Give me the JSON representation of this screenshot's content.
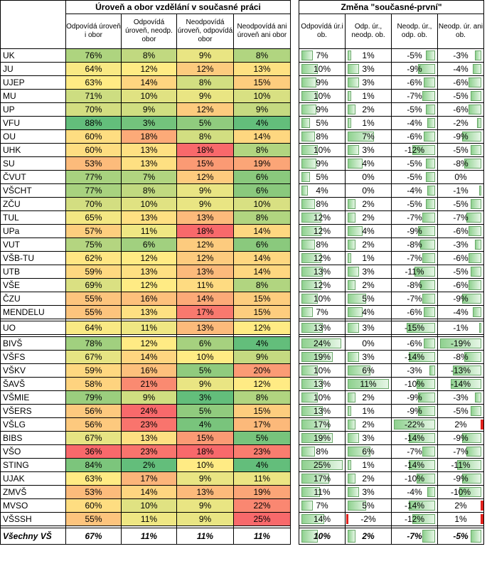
{
  "header": {
    "group1": "Úroveň a obor vzdělání v současné práci",
    "group2": "Změna \"současné-první\"",
    "cols1": [
      "Odpovídá úroveň i obor",
      "Odpovídá úroveň, neodp. obor",
      "Neodpovídá úroveň, odpovídá obor",
      "Neodpovídá ani úroveň ani obor"
    ],
    "cols2": [
      "Odpovídá úr.i ob.",
      "Odp. úr., neodp. ob.",
      "Neodp. úr., odp. ob.",
      "Neodp. úr. ani ob."
    ]
  },
  "colors": {
    "heat_low": "#f8696b",
    "heat_mid": "#ffeb84",
    "heat_high": "#63be7b",
    "bar_green": "#63be7b",
    "bar_red": "#e0201c"
  },
  "rows_a": [
    {
      "name": "UK",
      "v": [
        "76%",
        "8%",
        "9%",
        "8%"
      ],
      "c": [
        "7%",
        "1%",
        "-5%",
        "-3%"
      ]
    },
    {
      "name": "JU",
      "v": [
        "64%",
        "12%",
        "12%",
        "13%"
      ],
      "c": [
        "10%",
        "3%",
        "-9%",
        "-4%"
      ]
    },
    {
      "name": "UJEP",
      "v": [
        "63%",
        "14%",
        "8%",
        "15%"
      ],
      "c": [
        "9%",
        "3%",
        "-6%",
        "-6%"
      ]
    },
    {
      "name": "MU",
      "v": [
        "71%",
        "10%",
        "9%",
        "10%"
      ],
      "c": [
        "10%",
        "1%",
        "-7%",
        "-5%"
      ]
    },
    {
      "name": "UP",
      "v": [
        "70%",
        "9%",
        "12%",
        "9%"
      ],
      "c": [
        "9%",
        "2%",
        "-5%",
        "-6%"
      ]
    },
    {
      "name": "VFU",
      "v": [
        "88%",
        "3%",
        "5%",
        "4%"
      ],
      "c": [
        "5%",
        "1%",
        "-4%",
        "-2%"
      ]
    },
    {
      "name": "OU",
      "v": [
        "60%",
        "18%",
        "8%",
        "14%"
      ],
      "c": [
        "8%",
        "7%",
        "-6%",
        "-9%"
      ]
    },
    {
      "name": "UHK",
      "v": [
        "60%",
        "13%",
        "18%",
        "8%"
      ],
      "c": [
        "10%",
        "3%",
        "-12%",
        "-5%"
      ]
    },
    {
      "name": "SU",
      "v": [
        "53%",
        "13%",
        "15%",
        "19%"
      ],
      "c": [
        "9%",
        "4%",
        "-5%",
        "-8%"
      ]
    },
    {
      "name": "ČVUT",
      "v": [
        "77%",
        "7%",
        "12%",
        "6%"
      ],
      "c": [
        "5%",
        "0%",
        "-5%",
        "0%"
      ]
    },
    {
      "name": "VŠCHT",
      "v": [
        "77%",
        "8%",
        "9%",
        "6%"
      ],
      "c": [
        "4%",
        "0%",
        "-4%",
        "-1%"
      ]
    },
    {
      "name": "ZČU",
      "v": [
        "70%",
        "10%",
        "9%",
        "10%"
      ],
      "c": [
        "8%",
        "2%",
        "-5%",
        "-5%"
      ]
    },
    {
      "name": "TUL",
      "v": [
        "65%",
        "13%",
        "13%",
        "8%"
      ],
      "c": [
        "12%",
        "2%",
        "-7%",
        "-7%"
      ]
    },
    {
      "name": "UPa",
      "v": [
        "57%",
        "11%",
        "18%",
        "14%"
      ],
      "c": [
        "12%",
        "4%",
        "-9%",
        "-6%"
      ]
    },
    {
      "name": "VUT",
      "v": [
        "75%",
        "6%",
        "12%",
        "6%"
      ],
      "c": [
        "8%",
        "2%",
        "-8%",
        "-3%"
      ]
    },
    {
      "name": "VŠB-TU",
      "v": [
        "62%",
        "12%",
        "12%",
        "14%"
      ],
      "c": [
        "12%",
        "1%",
        "-7%",
        "-6%"
      ]
    },
    {
      "name": "UTB",
      "v": [
        "59%",
        "13%",
        "13%",
        "14%"
      ],
      "c": [
        "13%",
        "3%",
        "-11%",
        "-5%"
      ]
    },
    {
      "name": "VŠE",
      "v": [
        "69%",
        "12%",
        "11%",
        "8%"
      ],
      "c": [
        "12%",
        "2%",
        "-8%",
        "-6%"
      ]
    },
    {
      "name": "ČZU",
      "v": [
        "55%",
        "16%",
        "14%",
        "15%"
      ],
      "c": [
        "10%",
        "5%",
        "-7%",
        "-9%"
      ]
    },
    {
      "name": "MENDELU",
      "v": [
        "55%",
        "13%",
        "17%",
        "15%"
      ],
      "c": [
        "7%",
        "4%",
        "-6%",
        "-4%"
      ]
    }
  ],
  "rows_b": [
    {
      "name": "UO",
      "v": [
        "64%",
        "11%",
        "13%",
        "12%"
      ],
      "c": [
        "13%",
        "3%",
        "-15%",
        "-1%"
      ]
    }
  ],
  "rows_c": [
    {
      "name": "BIVŠ",
      "v": [
        "78%",
        "12%",
        "6%",
        "4%"
      ],
      "c": [
        "24%",
        "0%",
        "-6%",
        "-19%"
      ]
    },
    {
      "name": "VŠFS",
      "v": [
        "67%",
        "14%",
        "10%",
        "9%"
      ],
      "c": [
        "19%",
        "3%",
        "-14%",
        "-8%"
      ]
    },
    {
      "name": "VŠKV",
      "v": [
        "59%",
        "16%",
        "5%",
        "20%"
      ],
      "c": [
        "10%",
        "6%",
        "-3%",
        "-13%"
      ]
    },
    {
      "name": "ŠAVŠ",
      "v": [
        "58%",
        "21%",
        "9%",
        "12%"
      ],
      "c": [
        "13%",
        "11%",
        "-10%",
        "-14%"
      ]
    },
    {
      "name": "VŠMIE",
      "v": [
        "79%",
        "9%",
        "3%",
        "8%"
      ],
      "c": [
        "10%",
        "2%",
        "-9%",
        "-3%"
      ]
    },
    {
      "name": "VŠERS",
      "v": [
        "56%",
        "24%",
        "5%",
        "15%"
      ],
      "c": [
        "13%",
        "1%",
        "-9%",
        "-5%"
      ]
    },
    {
      "name": "VŠLG",
      "v": [
        "56%",
        "23%",
        "4%",
        "17%"
      ],
      "c": [
        "17%",
        "2%",
        "-22%",
        "2%"
      ]
    },
    {
      "name": "BIBS",
      "v": [
        "67%",
        "13%",
        "15%",
        "5%"
      ],
      "c": [
        "19%",
        "3%",
        "-14%",
        "-9%"
      ]
    },
    {
      "name": "VŠO",
      "v": [
        "36%",
        "23%",
        "18%",
        "23%"
      ],
      "c": [
        "8%",
        "6%",
        "-7%",
        "-7%"
      ]
    },
    {
      "name": "STING",
      "v": [
        "84%",
        "2%",
        "10%",
        "4%"
      ],
      "c": [
        "25%",
        "1%",
        "-14%",
        "-11%"
      ]
    },
    {
      "name": "UJAK",
      "v": [
        "63%",
        "17%",
        "9%",
        "11%"
      ],
      "c": [
        "17%",
        "2%",
        "-10%",
        "-9%"
      ]
    },
    {
      "name": "ZMVŠ",
      "v": [
        "53%",
        "14%",
        "13%",
        "19%"
      ],
      "c": [
        "11%",
        "3%",
        "-4%",
        "-10%"
      ]
    },
    {
      "name": "MVSO",
      "v": [
        "60%",
        "10%",
        "9%",
        "22%"
      ],
      "c": [
        "7%",
        "5%",
        "-14%",
        "2%"
      ]
    },
    {
      "name": "VŠSSH",
      "v": [
        "55%",
        "11%",
        "9%",
        "25%"
      ],
      "c": [
        "14%",
        "-2%",
        "-12%",
        "1%"
      ]
    }
  ],
  "total": {
    "name": "Všechny VŠ",
    "v": [
      "67%",
      "11%",
      "11%",
      "11%"
    ],
    "c": [
      "10%",
      "2%",
      "-7%",
      "-5%"
    ]
  }
}
